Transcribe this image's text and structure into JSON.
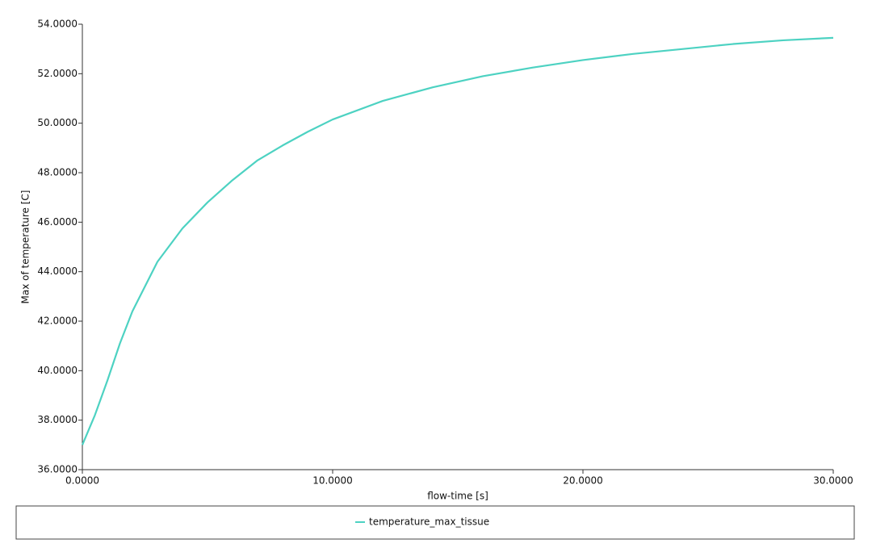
{
  "chart_data": {
    "type": "line",
    "xlabel": "flow-time [s]",
    "ylabel": "Max of temperature [C]",
    "x": [
      0,
      0.5,
      1,
      1.5,
      2,
      3,
      4,
      5,
      6,
      7,
      8,
      9,
      10,
      12,
      14,
      16,
      18,
      20,
      22,
      24,
      26,
      28,
      30
    ],
    "series": [
      {
        "name": "temperature_max_tissue",
        "color": "#4dd2c2",
        "values": [
          37.0,
          38.2,
          39.6,
          41.1,
          42.4,
          44.4,
          45.75,
          46.8,
          47.7,
          48.5,
          49.1,
          49.65,
          50.15,
          50.9,
          51.45,
          51.9,
          52.25,
          52.55,
          52.8,
          53.0,
          53.2,
          53.35,
          53.45
        ]
      }
    ],
    "xlim": [
      0,
      30
    ],
    "xticks": [
      {
        "value": 0,
        "label": "0.0000"
      },
      {
        "value": 10,
        "label": "10.0000"
      },
      {
        "value": 20,
        "label": "20.0000"
      },
      {
        "value": 30,
        "label": "30.0000"
      }
    ],
    "ylim": [
      36,
      54
    ],
    "yticks": [
      {
        "value": 36,
        "label": "36.0000"
      },
      {
        "value": 38,
        "label": "38.0000"
      },
      {
        "value": 40,
        "label": "40.0000"
      },
      {
        "value": 42,
        "label": "42.0000"
      },
      {
        "value": 44,
        "label": "44.0000"
      },
      {
        "value": 46,
        "label": "46.0000"
      },
      {
        "value": 48,
        "label": "48.0000"
      },
      {
        "value": 50,
        "label": "50.0000"
      },
      {
        "value": 52,
        "label": "52.0000"
      },
      {
        "value": 54,
        "label": "54.0000"
      }
    ],
    "legend": "bottom"
  }
}
